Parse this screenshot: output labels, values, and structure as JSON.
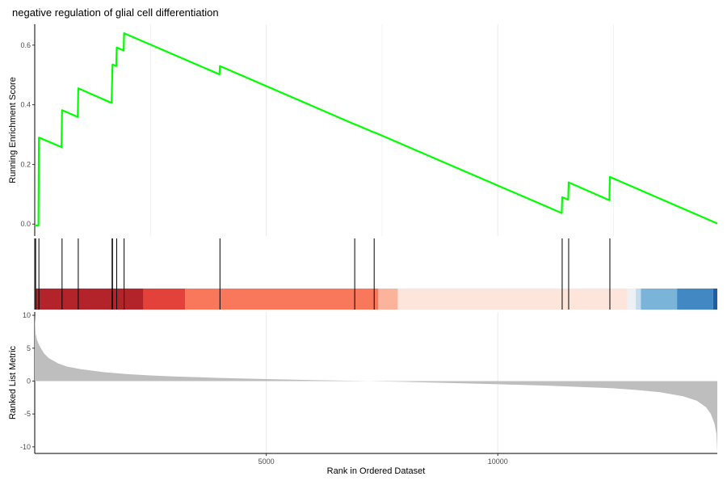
{
  "chart_data": {
    "type": "line",
    "title": "negative regulation of glial cell differentiation",
    "xlabel": "Rank in Ordered Dataset",
    "xlim": [
      0,
      14740
    ],
    "x_ticks": [
      5000,
      10000
    ],
    "grid": true,
    "panels": {
      "enrichment": {
        "ylabel": "Running Enrichment Score",
        "ylim": [
          -0.04,
          0.67
        ],
        "y_ticks": [
          0.0,
          0.2,
          0.4,
          0.6
        ],
        "y_tick_labels": [
          "0.0",
          "0.2",
          "0.4",
          "0.6"
        ],
        "line_color": "#00ff00",
        "series": [
          {
            "points": [
              [
                0,
                -0.005
              ],
              [
                80,
                -0.005
              ],
              [
                90,
                0.29
              ],
              [
                580,
                0.258
              ],
              [
                590,
                0.382
              ],
              [
                930,
                0.359
              ],
              [
                940,
                0.455
              ],
              [
                1660,
                0.406
              ],
              [
                1670,
                0.47
              ],
              [
                1680,
                0.535
              ],
              [
                1760,
                0.53
              ],
              [
                1770,
                0.592
              ],
              [
                1920,
                0.582
              ],
              [
                1930,
                0.64
              ],
              [
                3990,
                0.502
              ],
              [
                4000,
                0.53
              ],
              [
                6900,
                0.335
              ],
              [
                6910,
                0.335
              ],
              [
                7320,
                0.308
              ],
              [
                7330,
                0.308
              ],
              [
                11380,
                0.037
              ],
              [
                11390,
                0.09
              ],
              [
                11520,
                0.082
              ],
              [
                11530,
                0.14
              ],
              [
                12410,
                0.08
              ],
              [
                12420,
                0.158
              ],
              [
                14740,
                0.002
              ]
            ]
          }
        ]
      },
      "hits": {
        "positions": [
          20,
          90,
          590,
          940,
          1670,
          1680,
          1770,
          1930,
          4000,
          6910,
          7330,
          11390,
          11530,
          12420
        ]
      },
      "ranking_bar": {
        "segments": [
          {
            "from": 0,
            "to": 2350,
            "color": "#b2232a"
          },
          {
            "from": 2350,
            "to": 3250,
            "color": "#e2423a"
          },
          {
            "from": 3250,
            "to": 7420,
            "color": "#f9775b"
          },
          {
            "from": 7420,
            "to": 7840,
            "color": "#fbb49b"
          },
          {
            "from": 7840,
            "to": 12800,
            "color": "#fde5dc"
          },
          {
            "from": 12800,
            "to": 12980,
            "color": "#edf1f6"
          },
          {
            "from": 12980,
            "to": 13090,
            "color": "#c3dcee"
          },
          {
            "from": 13090,
            "to": 13870,
            "color": "#7ab4d9"
          },
          {
            "from": 13870,
            "to": 14650,
            "color": "#4289c3"
          },
          {
            "from": 14650,
            "to": 14740,
            "color": "#1f5ea6"
          }
        ]
      },
      "ranked_metric": {
        "ylabel": "Ranked List Metric",
        "ylim": [
          -11,
          10.5
        ],
        "y_ticks": [
          10,
          5,
          0,
          -5,
          -10
        ],
        "fill_color": "#bebebe",
        "points": [
          [
            0,
            10
          ],
          [
            20,
            7.2
          ],
          [
            50,
            6.2
          ],
          [
            100,
            5.4
          ],
          [
            200,
            4.2
          ],
          [
            300,
            3.5
          ],
          [
            500,
            2.7
          ],
          [
            700,
            2.2
          ],
          [
            1000,
            1.8
          ],
          [
            1500,
            1.35
          ],
          [
            2000,
            1.05
          ],
          [
            2500,
            0.85
          ],
          [
            3000,
            0.7
          ],
          [
            4000,
            0.48
          ],
          [
            5000,
            0.3
          ],
          [
            6000,
            0.15
          ],
          [
            7000,
            0.02
          ],
          [
            7500,
            -0.05
          ],
          [
            8000,
            -0.12
          ],
          [
            9000,
            -0.3
          ],
          [
            10000,
            -0.48
          ],
          [
            11000,
            -0.68
          ],
          [
            12000,
            -0.95
          ],
          [
            12500,
            -1.1
          ],
          [
            13000,
            -1.35
          ],
          [
            13500,
            -1.7
          ],
          [
            14000,
            -2.3
          ],
          [
            14300,
            -3.0
          ],
          [
            14500,
            -4.0
          ],
          [
            14600,
            -5.0
          ],
          [
            14680,
            -6.5
          ],
          [
            14720,
            -8.0
          ],
          [
            14740,
            -10.8
          ]
        ]
      }
    }
  }
}
